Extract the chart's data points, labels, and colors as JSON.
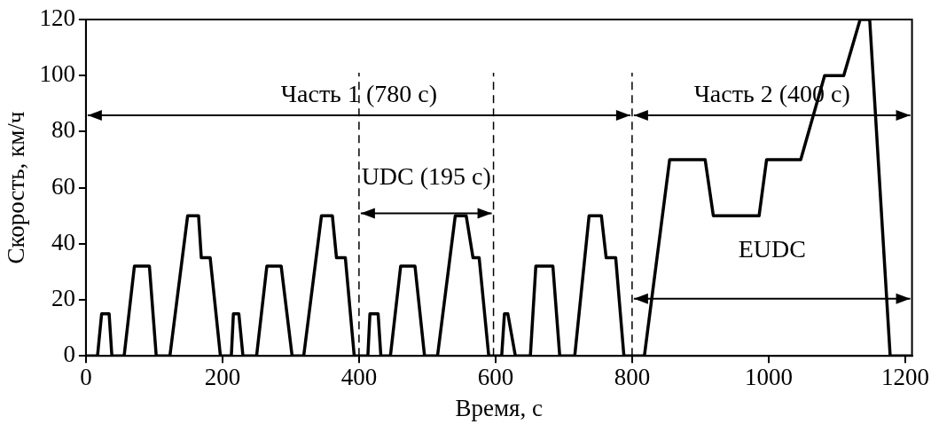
{
  "chart_data": {
    "type": "line",
    "xlabel": "Время, с",
    "ylabel": "Скорость, км/ч",
    "xlim": [
      0,
      1210
    ],
    "ylim": [
      0,
      120
    ],
    "xticks": [
      0,
      200,
      400,
      600,
      800,
      1000,
      1200
    ],
    "yticks": [
      0,
      20,
      40,
      60,
      80,
      100,
      120
    ],
    "grid": false,
    "legend": false,
    "marker": "none",
    "line_style": "solid",
    "series": [
      {
        "color": "#000000",
        "x": [
          0,
          17,
          23,
          34,
          38,
          56,
          71,
          93,
          103,
          123,
          149,
          165,
          169,
          182,
          197,
          213,
          216,
          224,
          230,
          250,
          265,
          286,
          302,
          319,
          345,
          361,
          367,
          380,
          393,
          413,
          416,
          428,
          432,
          446,
          461,
          482,
          496,
          515,
          541,
          557,
          567,
          576,
          590,
          609,
          613,
          618,
          629,
          651,
          659,
          684,
          694,
          716,
          737,
          755,
          762,
          776,
          788,
          818,
          855,
          907,
          919,
          986,
          997,
          1047,
          1082,
          1110,
          1134,
          1148,
          1178,
          1208
        ],
        "values": [
          0,
          0,
          15,
          15,
          0,
          0,
          32,
          32,
          0,
          0,
          50,
          50,
          35,
          35,
          0,
          0,
          15,
          15,
          0,
          0,
          32,
          32,
          0,
          0,
          50,
          50,
          35,
          35,
          0,
          0,
          15,
          15,
          0,
          0,
          32,
          32,
          0,
          0,
          50,
          50,
          35,
          35,
          0,
          0,
          15,
          15,
          0,
          0,
          32,
          32,
          0,
          0,
          50,
          50,
          35,
          35,
          0,
          0,
          70,
          70,
          50,
          50,
          70,
          70,
          100,
          100,
          120,
          120,
          0,
          0
        ]
      }
    ],
    "ref_lines": [
      {
        "axis": "x",
        "value": 400,
        "line_style": "dashed",
        "color": "#000000"
      },
      {
        "axis": "x",
        "value": 597,
        "line_style": "dashed",
        "color": "#000000"
      },
      {
        "axis": "x",
        "value": 800,
        "line_style": "dashed",
        "color": "#000000"
      }
    ],
    "annotations": [
      "Часть 1 (780 с)",
      "Часть 2 (400 с)",
      "UDC (195 с)",
      "EUDC"
    ]
  }
}
